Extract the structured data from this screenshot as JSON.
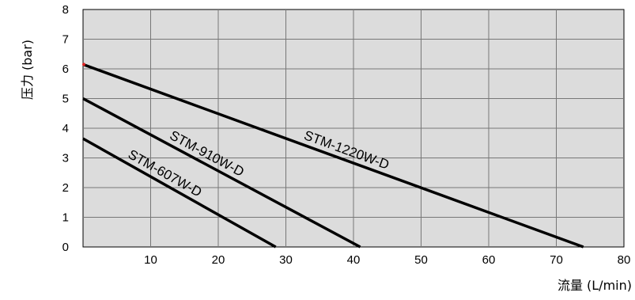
{
  "chart_data": {
    "type": "line",
    "xlabel": "流量 (L/min)",
    "ylabel": "压力 (bar)",
    "xlim": [
      0,
      80
    ],
    "ylim": [
      0,
      8
    ],
    "x_ticks": [
      10,
      20,
      30,
      40,
      50,
      60,
      70,
      80
    ],
    "y_ticks": [
      0,
      1,
      2,
      3,
      4,
      5,
      6,
      7,
      8
    ],
    "grid": true,
    "plot_background": "#dcdcdc",
    "line_color": "#000000",
    "series": [
      {
        "name": "STM-1220W-D",
        "x": [
          0,
          74
        ],
        "y": [
          6.15,
          0
        ]
      },
      {
        "name": "STM-910W-D",
        "x": [
          0,
          41
        ],
        "y": [
          5.0,
          0
        ]
      },
      {
        "name": "STM-607W-D",
        "x": [
          0,
          28.5
        ],
        "y": [
          3.65,
          0
        ]
      }
    ]
  }
}
